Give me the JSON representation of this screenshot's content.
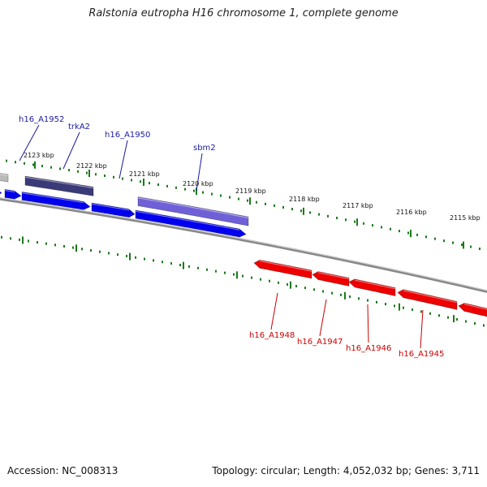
{
  "title": "Ralstonia eutropha H16 chromosome 1, complete genome",
  "accession": "Accession: NC_008313",
  "summary": "Topology: circular; Length: 4,052,032 bp; Genes: 3,711",
  "colors": {
    "forward_gene": "#0000ee",
    "reverse_gene": "#ee0000",
    "feature_dark": "#3b3a78",
    "feature_light": "#7060d8",
    "feature_grey": "#bbbbbb",
    "backbone": "#888888",
    "ticks": "#1a7a1a",
    "forward_label": "#1a1aa0",
    "reverse_label": "#cc0000"
  },
  "ticks": [
    "2123 kbp",
    "2122 kbp",
    "2121 kbp",
    "2120 kbp",
    "2119 kbp",
    "2118 kbp",
    "2117 kbp",
    "2116 kbp",
    "2115 kbp"
  ],
  "forward_labels": [
    "h16_A1952",
    "trkA2",
    "h16_A1950",
    "sbm2"
  ],
  "reverse_labels": [
    "h16_A1948",
    "h16_A1947",
    "h16_A1946",
    "h16_A1945"
  ]
}
